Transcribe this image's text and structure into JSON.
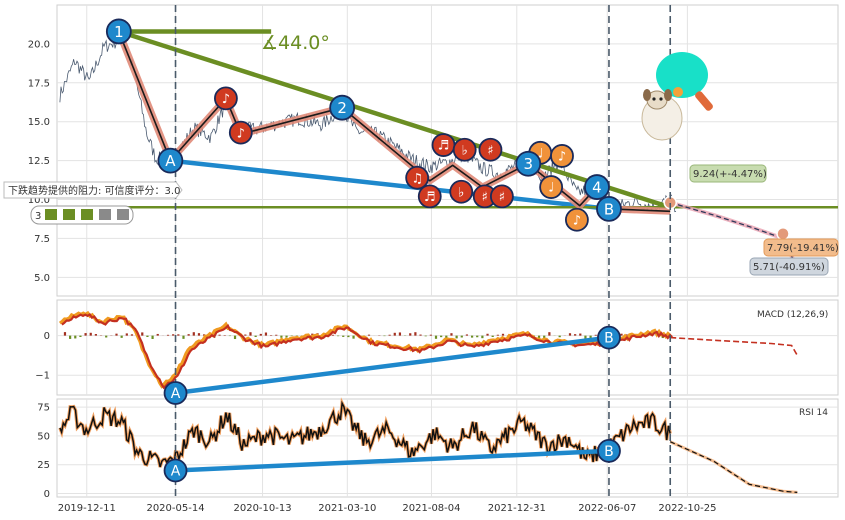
{
  "chart_data": [
    {
      "type": "line",
      "panel": "price",
      "title": "",
      "ylim": [
        3.8,
        22.5
      ],
      "yticks": [
        5.0,
        7.5,
        10.0,
        12.5,
        15.0,
        17.5,
        20.0
      ],
      "ytick_labels": [
        "5.0",
        "7.5",
        "10.0",
        "12.5",
        "15.0",
        "17.5",
        "20.0"
      ],
      "xlim": [
        "2019-10-20",
        "2023-07-15"
      ],
      "xticks": [
        "2019-12-11",
        "2020-05-14",
        "2020-10-13",
        "2021-03-10",
        "2021-08-04",
        "2021-12-31",
        "2022-06-07",
        "2022-10-25"
      ],
      "price_anchors": [
        {
          "x": "2019-10-25",
          "y": 16.7
        },
        {
          "x": "2019-11-20",
          "y": 18.9
        },
        {
          "x": "2019-12-15",
          "y": 17.6
        },
        {
          "x": "2020-01-10",
          "y": 19.8
        },
        {
          "x": "2020-02-10",
          "y": 20.3
        },
        {
          "x": "2020-03-01",
          "y": 18.5
        },
        {
          "x": "2020-03-25",
          "y": 14.2
        },
        {
          "x": "2020-04-10",
          "y": 12.6
        },
        {
          "x": "2020-05-14",
          "y": 12.8
        },
        {
          "x": "2020-06-15",
          "y": 14.6
        },
        {
          "x": "2020-07-15",
          "y": 14.0
        },
        {
          "x": "2020-08-10",
          "y": 16.2
        },
        {
          "x": "2020-09-01",
          "y": 14.6
        },
        {
          "x": "2020-10-01",
          "y": 14.5
        },
        {
          "x": "2020-11-01",
          "y": 14.8
        },
        {
          "x": "2020-12-15",
          "y": 15.2
        },
        {
          "x": "2021-01-25",
          "y": 14.8
        },
        {
          "x": "2021-03-01",
          "y": 15.9
        },
        {
          "x": "2021-03-25",
          "y": 14.4
        },
        {
          "x": "2021-05-01",
          "y": 14.2
        },
        {
          "x": "2021-06-01",
          "y": 13.4
        },
        {
          "x": "2021-07-01",
          "y": 12.6
        },
        {
          "x": "2021-08-01",
          "y": 12.1
        },
        {
          "x": "2021-09-01",
          "y": 12.4
        },
        {
          "x": "2021-10-01",
          "y": 12.9
        },
        {
          "x": "2021-11-01",
          "y": 12.0
        },
        {
          "x": "2021-12-01",
          "y": 11.6
        },
        {
          "x": "2022-01-01",
          "y": 12.2
        },
        {
          "x": "2022-01-20",
          "y": 12.8
        },
        {
          "x": "2022-02-15",
          "y": 11.4
        },
        {
          "x": "2022-03-15",
          "y": 12.5
        },
        {
          "x": "2022-04-15",
          "y": 10.4
        },
        {
          "x": "2022-05-15",
          "y": 10.8
        },
        {
          "x": "2022-06-01",
          "y": 9.8
        },
        {
          "x": "2022-07-01",
          "y": 9.6
        },
        {
          "x": "2022-07-25",
          "y": 9.9
        },
        {
          "x": "2022-08-20",
          "y": 9.6
        },
        {
          "x": "2022-09-10",
          "y": 9.7
        },
        {
          "x": "2022-09-25",
          "y": 10.1
        },
        {
          "x": "2022-10-05",
          "y": 9.24
        }
      ],
      "wave_path": [
        {
          "label": "1",
          "x": "2020-02-05",
          "y": 20.8
        },
        {
          "label": "A",
          "x": "2020-05-05",
          "y": 12.5
        },
        {
          "label": "",
          "x": "2020-08-10",
          "y": 16.5
        },
        {
          "label": "",
          "x": "2020-09-05",
          "y": 14.2
        },
        {
          "label": "2",
          "x": "2021-03-01",
          "y": 15.9
        },
        {
          "label": "",
          "x": "2021-08-01",
          "y": 11.2
        },
        {
          "label": "",
          "x": "2021-09-10",
          "y": 12.2
        },
        {
          "label": "",
          "x": "2021-11-01",
          "y": 10.8
        },
        {
          "label": "3",
          "x": "2022-01-20",
          "y": 12.3
        },
        {
          "label": "",
          "x": "2022-04-20",
          "y": 9.6
        },
        {
          "label": "4",
          "x": "2022-05-20",
          "y": 10.8
        },
        {
          "label": "B",
          "x": "2022-06-10",
          "y": 9.4
        },
        {
          "label": "",
          "x": "2022-09-25",
          "y": 9.24
        }
      ],
      "trendlines": [
        {
          "name": "resistance",
          "color": "#6b8e23",
          "from": {
            "x": "2020-02-05",
            "y": 20.8
          },
          "to": {
            "x": "2022-09-25",
            "y": 9.5
          }
        },
        {
          "name": "support",
          "color": "#1e88cc",
          "from": {
            "x": "2020-05-05",
            "y": 12.5
          },
          "to": {
            "x": "2022-06-10",
            "y": 9.4
          }
        },
        {
          "name": "top-flag",
          "color": "#6b8e23",
          "from": {
            "x": "2020-02-05",
            "y": 20.8
          },
          "to": {
            "x": "2020-10-28",
            "y": 20.8
          }
        },
        {
          "name": "horizontal",
          "color": "#6b8e23",
          "from": {
            "x": "2019-12-01",
            "y": 9.5
          },
          "to": {
            "x": "2023-07-15",
            "y": 9.5
          }
        }
      ],
      "vlines": [
        "2020-05-14",
        "2022-06-10",
        "2022-09-25"
      ],
      "wave_labels": [
        {
          "text": "1",
          "color": "#1e88cc",
          "x": "2020-02-05",
          "y": 20.8
        },
        {
          "text": "A",
          "color": "#1e88cc",
          "x": "2020-05-05",
          "y": 12.5
        },
        {
          "text": "2",
          "color": "#1e88cc",
          "x": "2021-03-01",
          "y": 15.9
        },
        {
          "text": "3",
          "color": "#1e88cc",
          "x": "2022-01-20",
          "y": 12.3
        },
        {
          "text": "4",
          "color": "#1e88cc",
          "x": "2022-05-20",
          "y": 10.8
        },
        {
          "text": "B",
          "color": "#1e88cc",
          "x": "2022-06-10",
          "y": 9.4
        }
      ],
      "note_markers": [
        {
          "text": "♪",
          "color": "#d03a20",
          "x": "2020-08-10",
          "y": 16.5
        },
        {
          "text": "♪",
          "color": "#d03a20",
          "x": "2020-09-05",
          "y": 14.3
        },
        {
          "text": "♫",
          "color": "#d03a20",
          "x": "2021-07-10",
          "y": 11.4
        },
        {
          "text": "♬",
          "color": "#d03a20",
          "x": "2021-08-01",
          "y": 10.2
        },
        {
          "text": "♬",
          "color": "#d03a20",
          "x": "2021-08-25",
          "y": 13.5
        },
        {
          "text": "♭",
          "color": "#d03a20",
          "x": "2021-09-25",
          "y": 10.5
        },
        {
          "text": "♭",
          "color": "#d03a20",
          "x": "2021-10-01",
          "y": 13.2
        },
        {
          "text": "♯",
          "color": "#d03a20",
          "x": "2021-11-05",
          "y": 10.2
        },
        {
          "text": "♯",
          "color": "#d03a20",
          "x": "2021-11-15",
          "y": 13.2
        },
        {
          "text": "♯",
          "color": "#d03a20",
          "x": "2021-12-05",
          "y": 10.2
        },
        {
          "text": "♩",
          "color": "#f0923a",
          "x": "2022-02-10",
          "y": 13.0
        },
        {
          "text": "♩",
          "color": "#f0923a",
          "x": "2022-03-01",
          "y": 10.8
        },
        {
          "text": "♪",
          "color": "#f0923a",
          "x": "2022-03-20",
          "y": 12.8
        },
        {
          "text": "♪",
          "color": "#f0923a",
          "x": "2022-04-15",
          "y": 8.7
        }
      ],
      "forecast": [
        {
          "x": "2022-09-25",
          "y": 9.8
        },
        {
          "x": "2022-12-10",
          "y": 9.0
        },
        {
          "x": "2023-02-15",
          "y": 8.2
        },
        {
          "x": "2023-04-10",
          "y": 7.5
        },
        {
          "x": "2023-05-05",
          "y": 5.6
        }
      ],
      "forecast_points": [
        {
          "x": "2022-09-25",
          "y": 9.8,
          "color": "#e39a7a"
        },
        {
          "x": "2023-04-10",
          "y": 7.8,
          "color": "#e39a7a"
        },
        {
          "x": "2023-05-05",
          "y": 5.6,
          "color": "#2f3a4a"
        }
      ],
      "annotations": {
        "angle": "∡44.0°",
        "resistance_note": "下跌趋势提供的阻力: 可信度评分：3.0",
        "score_badge": "3",
        "price_now": "9.24(+-4.47%)",
        "target1": "7.79(-19.41%)",
        "target2": "5.71(-40.91%)"
      }
    },
    {
      "type": "line",
      "panel": "macd",
      "title": "MACD (12,26,9)",
      "ylim": [
        -1.5,
        0.9
      ],
      "yticks": [
        -1,
        0
      ],
      "ytick_labels": [
        "−1",
        "0"
      ],
      "macd_anchors": [
        {
          "x": "2019-10-25",
          "y": 0.35
        },
        {
          "x": "2019-12-05",
          "y": 0.6
        },
        {
          "x": "2020-01-05",
          "y": 0.35
        },
        {
          "x": "2020-02-10",
          "y": 0.5
        },
        {
          "x": "2020-03-05",
          "y": 0.1
        },
        {
          "x": "2020-03-25",
          "y": -0.6
        },
        {
          "x": "2020-04-20",
          "y": -1.25
        },
        {
          "x": "2020-05-14",
          "y": -1.0
        },
        {
          "x": "2020-06-05",
          "y": -0.35
        },
        {
          "x": "2020-07-01",
          "y": -0.1
        },
        {
          "x": "2020-08-10",
          "y": 0.25
        },
        {
          "x": "2020-09-10",
          "y": -0.05
        },
        {
          "x": "2020-10-15",
          "y": -0.25
        },
        {
          "x": "2020-12-01",
          "y": -0.05
        },
        {
          "x": "2021-01-20",
          "y": 0.0
        },
        {
          "x": "2021-03-05",
          "y": 0.25
        },
        {
          "x": "2021-04-20",
          "y": -0.15
        },
        {
          "x": "2021-06-01",
          "y": -0.25
        },
        {
          "x": "2021-07-15",
          "y": -0.35
        },
        {
          "x": "2021-09-01",
          "y": -0.1
        },
        {
          "x": "2021-10-10",
          "y": -0.25
        },
        {
          "x": "2021-11-20",
          "y": -0.1
        },
        {
          "x": "2022-01-15",
          "y": 0.05
        },
        {
          "x": "2022-03-01",
          "y": -0.15
        },
        {
          "x": "2022-04-20",
          "y": -0.2
        },
        {
          "x": "2022-06-10",
          "y": -0.15
        },
        {
          "x": "2022-07-20",
          "y": 0.0
        },
        {
          "x": "2022-08-25",
          "y": 0.1
        },
        {
          "x": "2022-09-25",
          "y": 0.0
        }
      ],
      "macd_forecast": [
        {
          "x": "2022-09-25",
          "y": -0.05
        },
        {
          "x": "2022-12-15",
          "y": -0.12
        },
        {
          "x": "2023-03-20",
          "y": -0.2
        },
        {
          "x": "2023-04-25",
          "y": -0.25
        },
        {
          "x": "2023-05-05",
          "y": -0.5
        }
      ],
      "divergence_line": {
        "from": {
          "x": "2020-05-14",
          "y": -1.45
        },
        "to": {
          "x": "2022-06-10",
          "y": -0.05
        }
      },
      "labels": [
        {
          "text": "A",
          "x": "2020-05-14",
          "y": -1.45
        },
        {
          "text": "B",
          "x": "2022-06-10",
          "y": -0.05
        }
      ]
    },
    {
      "type": "line",
      "panel": "rsi",
      "title": "RSI 14",
      "ylim": [
        -3,
        82
      ],
      "yticks": [
        0,
        25,
        50,
        75
      ],
      "ytick_labels": [
        "0",
        "25",
        "50",
        "75"
      ],
      "rsi_anchors": [
        {
          "x": "2019-10-25",
          "y": 55
        },
        {
          "x": "2019-11-15",
          "y": 70
        },
        {
          "x": "2019-12-10",
          "y": 55
        },
        {
          "x": "2020-01-10",
          "y": 68
        },
        {
          "x": "2020-02-10",
          "y": 62
        },
        {
          "x": "2020-03-10",
          "y": 35
        },
        {
          "x": "2020-04-20",
          "y": 25
        },
        {
          "x": "2020-05-14",
          "y": 30
        },
        {
          "x": "2020-06-15",
          "y": 55
        },
        {
          "x": "2020-07-15",
          "y": 45
        },
        {
          "x": "2020-08-10",
          "y": 68
        },
        {
          "x": "2020-09-10",
          "y": 42
        },
        {
          "x": "2020-10-20",
          "y": 52
        },
        {
          "x": "2020-12-01",
          "y": 45
        },
        {
          "x": "2021-01-20",
          "y": 55
        },
        {
          "x": "2021-03-01",
          "y": 72
        },
        {
          "x": "2021-04-10",
          "y": 45
        },
        {
          "x": "2021-05-20",
          "y": 55
        },
        {
          "x": "2021-07-01",
          "y": 35
        },
        {
          "x": "2021-08-10",
          "y": 52
        },
        {
          "x": "2021-09-10",
          "y": 40
        },
        {
          "x": "2021-10-15",
          "y": 58
        },
        {
          "x": "2021-11-15",
          "y": 38
        },
        {
          "x": "2022-01-10",
          "y": 62
        },
        {
          "x": "2022-02-20",
          "y": 42
        },
        {
          "x": "2022-04-01",
          "y": 48
        },
        {
          "x": "2022-05-01",
          "y": 30
        },
        {
          "x": "2022-06-10",
          "y": 40
        },
        {
          "x": "2022-07-20",
          "y": 58
        },
        {
          "x": "2022-08-25",
          "y": 62
        },
        {
          "x": "2022-09-25",
          "y": 52
        }
      ],
      "rsi_forecast": [
        {
          "x": "2022-09-25",
          "y": 45
        },
        {
          "x": "2022-12-10",
          "y": 28
        },
        {
          "x": "2023-02-10",
          "y": 8
        },
        {
          "x": "2023-04-10",
          "y": 2
        },
        {
          "x": "2023-05-05",
          "y": 1
        }
      ],
      "divergence_line": {
        "from": {
          "x": "2020-05-14",
          "y": 20
        },
        "to": {
          "x": "2022-06-10",
          "y": 37
        }
      },
      "labels": [
        {
          "text": "A",
          "x": "2020-05-14",
          "y": 20
        },
        {
          "text": "B",
          "x": "2022-06-10",
          "y": 37
        }
      ]
    }
  ]
}
